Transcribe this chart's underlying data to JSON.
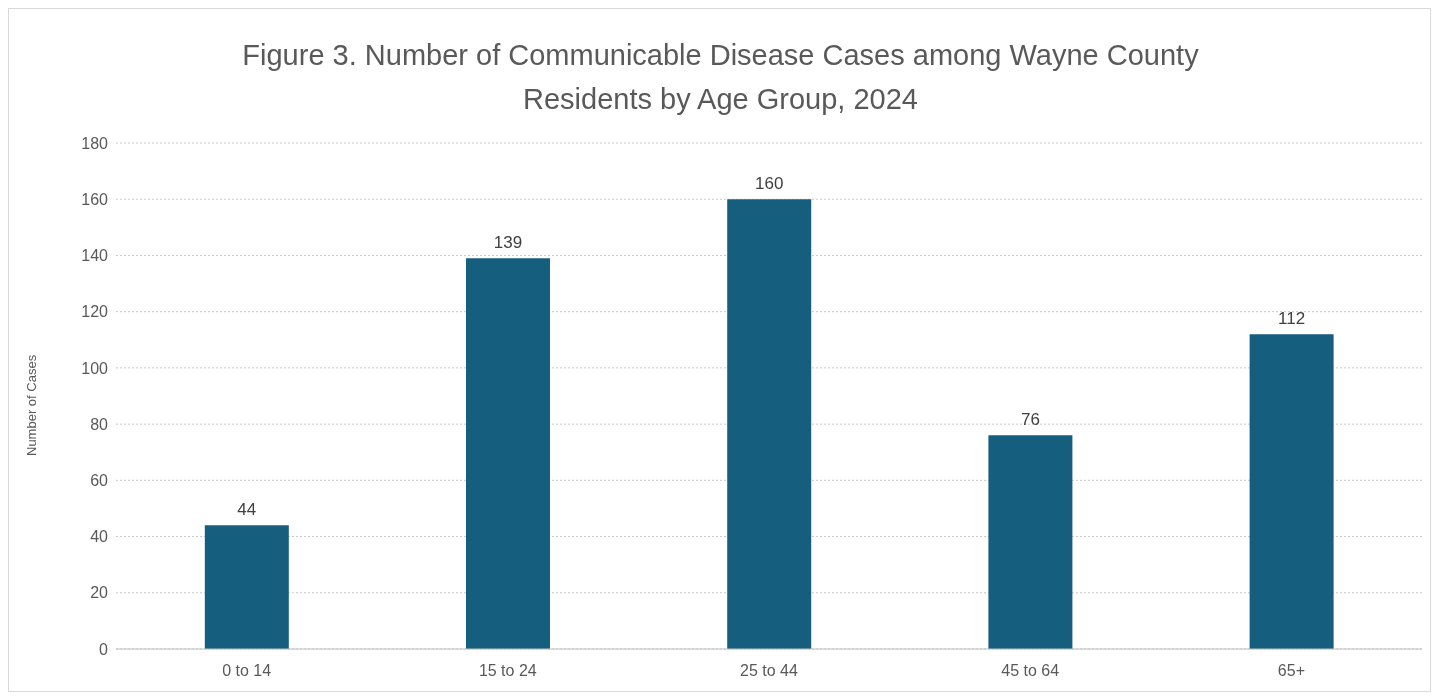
{
  "chart_data": {
    "type": "bar",
    "title": "Figure 3. Number of Communicable Disease Cases among Wayne County Residents by Age Group, 2024",
    "ylabel": "Number of Cases",
    "categories": [
      "0 to 14",
      "15 to 24",
      "25 to 44",
      "45 to 64",
      "65+"
    ],
    "values": [
      44,
      139,
      160,
      76,
      112
    ],
    "color": "#155e7e",
    "ylim": [
      0,
      180
    ],
    "yticks": [
      0,
      20,
      40,
      60,
      80,
      100,
      120,
      140,
      160,
      180
    ],
    "grid": "y",
    "data_labels": true
  }
}
